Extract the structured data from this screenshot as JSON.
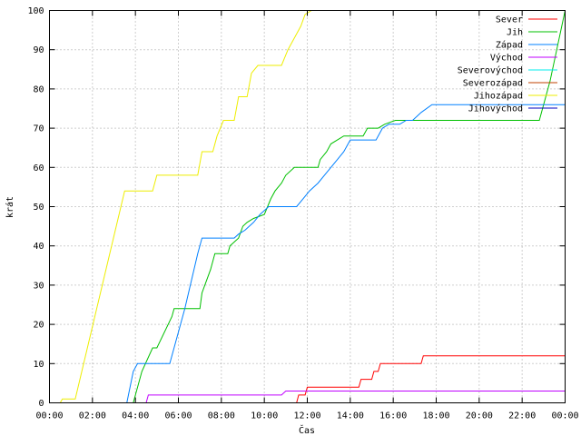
{
  "chart_data": {
    "type": "line",
    "title": "",
    "xlabel": "Čas",
    "ylabel": "krát",
    "xlim": [
      0,
      24
    ],
    "ylim": [
      0,
      100
    ],
    "x_unit": "hours",
    "x_tick_labels": [
      "00:00",
      "02:00",
      "04:00",
      "06:00",
      "08:00",
      "10:00",
      "12:00",
      "14:00",
      "16:00",
      "18:00",
      "20:00",
      "22:00",
      "00:00"
    ],
    "x_tick_values": [
      0,
      2,
      4,
      6,
      8,
      10,
      12,
      14,
      16,
      18,
      20,
      22,
      24
    ],
    "y_tick_values": [
      0,
      10,
      20,
      30,
      40,
      50,
      60,
      70,
      80,
      90,
      100
    ],
    "grid": true,
    "legend_position": "top-right",
    "series": [
      {
        "name": "Sever",
        "color": "#ff0000",
        "points": [
          [
            11.5,
            0
          ],
          [
            11.6,
            2
          ],
          [
            11.9,
            2
          ],
          [
            12.0,
            4
          ],
          [
            14.4,
            4
          ],
          [
            14.5,
            6
          ],
          [
            15.0,
            6
          ],
          [
            15.1,
            8
          ],
          [
            15.3,
            8
          ],
          [
            15.4,
            10
          ],
          [
            17.3,
            10
          ],
          [
            17.4,
            12
          ],
          [
            24,
            12
          ]
        ]
      },
      {
        "name": "Jih",
        "color": "#00c000",
        "points": [
          [
            3.9,
            0
          ],
          [
            4.3,
            8
          ],
          [
            4.8,
            14
          ],
          [
            5.0,
            14
          ],
          [
            5.7,
            22
          ],
          [
            5.8,
            24
          ],
          [
            7.0,
            24
          ],
          [
            7.1,
            28
          ],
          [
            7.5,
            34
          ],
          [
            7.7,
            38
          ],
          [
            8.3,
            38
          ],
          [
            8.4,
            40
          ],
          [
            8.8,
            42
          ],
          [
            9.0,
            45
          ],
          [
            9.2,
            46
          ],
          [
            9.5,
            47
          ],
          [
            10.0,
            48
          ],
          [
            10.3,
            52
          ],
          [
            10.5,
            54
          ],
          [
            10.8,
            56
          ],
          [
            11.0,
            58
          ],
          [
            11.4,
            60
          ],
          [
            12.5,
            60
          ],
          [
            12.6,
            62
          ],
          [
            12.9,
            64
          ],
          [
            13.1,
            66
          ],
          [
            13.4,
            67
          ],
          [
            13.7,
            68
          ],
          [
            14.6,
            68
          ],
          [
            14.8,
            70
          ],
          [
            15.3,
            70
          ],
          [
            15.6,
            71
          ],
          [
            16.1,
            72
          ],
          [
            22.8,
            72
          ],
          [
            23.3,
            82
          ],
          [
            24,
            100
          ]
        ]
      },
      {
        "name": "Západ",
        "color": "#0080ff",
        "points": [
          [
            3.6,
            0
          ],
          [
            3.9,
            8
          ],
          [
            4.1,
            10
          ],
          [
            5.6,
            10
          ],
          [
            6.3,
            24
          ],
          [
            6.9,
            38
          ],
          [
            7.1,
            42
          ],
          [
            8.6,
            42
          ],
          [
            8.8,
            43
          ],
          [
            9.1,
            44
          ],
          [
            9.5,
            46
          ],
          [
            9.8,
            48
          ],
          [
            10.2,
            50
          ],
          [
            11.5,
            50
          ],
          [
            11.8,
            52
          ],
          [
            12.1,
            54
          ],
          [
            12.5,
            56
          ],
          [
            12.8,
            58
          ],
          [
            13.1,
            60
          ],
          [
            13.4,
            62
          ],
          [
            13.7,
            64
          ],
          [
            14.0,
            67
          ],
          [
            15.2,
            67
          ],
          [
            15.5,
            70
          ],
          [
            15.8,
            71
          ],
          [
            16.3,
            71
          ],
          [
            16.6,
            72
          ],
          [
            16.9,
            72
          ],
          [
            17.3,
            74
          ],
          [
            17.8,
            76
          ],
          [
            24,
            76
          ]
        ]
      },
      {
        "name": "Východ",
        "color": "#c000ff",
        "points": [
          [
            4.5,
            0
          ],
          [
            4.6,
            2
          ],
          [
            10.8,
            2
          ],
          [
            11.0,
            3
          ],
          [
            24,
            3
          ]
        ]
      },
      {
        "name": "Severovýchod",
        "color": "#00eeee",
        "points": []
      },
      {
        "name": "Severozápad",
        "color": "#c04000",
        "points": []
      },
      {
        "name": "Jihozápad",
        "color": "#eeee00",
        "points": [
          [
            0.5,
            0
          ],
          [
            0.6,
            1
          ],
          [
            1.2,
            1
          ],
          [
            3.5,
            54
          ],
          [
            4.8,
            54
          ],
          [
            5.0,
            58
          ],
          [
            6.9,
            58
          ],
          [
            7.1,
            64
          ],
          [
            7.6,
            64
          ],
          [
            7.8,
            68
          ],
          [
            8.1,
            72
          ],
          [
            8.6,
            72
          ],
          [
            8.8,
            78
          ],
          [
            9.2,
            78
          ],
          [
            9.4,
            84
          ],
          [
            9.7,
            86
          ],
          [
            10.8,
            86
          ],
          [
            11.1,
            90
          ],
          [
            11.4,
            93
          ],
          [
            11.7,
            96
          ],
          [
            11.9,
            99
          ],
          [
            12.2,
            100
          ]
        ]
      },
      {
        "name": "Jihovýchod",
        "color": "#0000c0",
        "points": []
      }
    ]
  }
}
